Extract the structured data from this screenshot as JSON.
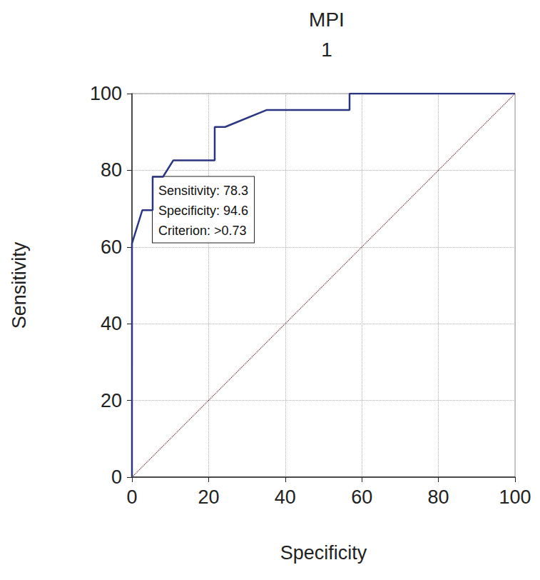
{
  "chart_data": {
    "type": "line",
    "title": "MPI",
    "subtitle": "1",
    "x_label": "Specificity",
    "y_label": "Sensitivity",
    "xlim": [
      0,
      100
    ],
    "ylim": [
      0,
      100
    ],
    "xticks": [
      0,
      20,
      40,
      60,
      80,
      100
    ],
    "yticks": [
      0,
      20,
      40,
      60,
      80,
      100
    ],
    "grid": true,
    "series": [
      {
        "x": [
          0,
          0,
          2.7,
          5.4,
          5.4,
          8.1,
          10.8,
          21.6,
          21.6,
          24.3,
          35.1,
          56.8,
          56.8,
          100
        ],
        "values": [
          0,
          60.9,
          69.6,
          69.6,
          78.3,
          78.3,
          82.6,
          82.6,
          91.3,
          91.3,
          95.7,
          95.7,
          100,
          100
        ],
        "color": "#2b3580",
        "line_style": "solid"
      },
      {
        "x": [
          0,
          100
        ],
        "values": [
          0,
          100
        ],
        "color": "#6b2a2a",
        "line_style": "dotted"
      }
    ],
    "annotation": {
      "x": 5.4,
      "y": 78.3,
      "text": [
        "Sensitivity: 78.3",
        "Specificity: 94.6",
        "Criterion: >0.73"
      ]
    }
  }
}
